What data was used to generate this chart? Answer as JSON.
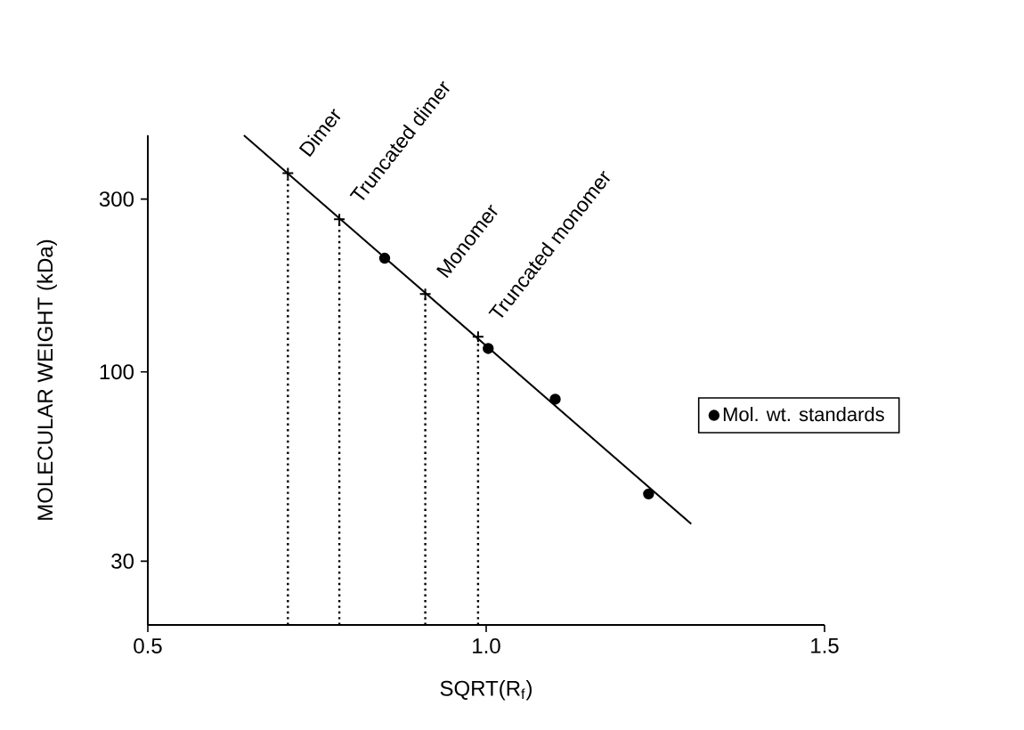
{
  "chart_data": {
    "type": "scatter",
    "xlabel": "SQRT(R$_{f}$)",
    "ylabel": "MOLECULAR WEIGHT (kDa)",
    "log": "y",
    "xlim": [
      0.5,
      1.5
    ],
    "ylim": [
      20,
      450
    ],
    "xticks": [
      0.5,
      {
        "value": 1.0,
        "label": "1.0"
      },
      1.5
    ],
    "yticks": [
      30,
      100,
      300
    ],
    "grid": false,
    "legend": "right",
    "series": [
      {
        "type": "scatter",
        "marker": "circle",
        "name": "Mol. wt. standards",
        "color": "#000000",
        "x": [
          0.85,
          1.003,
          1.102,
          1.24
        ],
        "values": [
          206,
          116,
          84,
          46
        ]
      },
      {
        "type": "scatter",
        "marker": "cross",
        "color": "#000000",
        "x": [
          0.707,
          0.783,
          0.91,
          0.988
        ],
        "values": [
          354,
          264,
          164,
          125
        ]
      },
      {
        "type": "line",
        "marker": "none",
        "color": "#000000",
        "x": [
          0.642,
          1.303
        ],
        "values": [
          450,
          38
        ]
      }
    ],
    "ref_lines": [
      {
        "axis": "x",
        "value": 0.707,
        "label": "Dimer",
        "line_style": "dotted"
      },
      {
        "axis": "x",
        "value": 0.783,
        "label": "Truncated dimer",
        "line_style": "dotted"
      },
      {
        "axis": "x",
        "value": 0.91,
        "label": "Monomer",
        "line_style": "dotted"
      },
      {
        "axis": "x",
        "value": 0.988,
        "label": "Truncated monomer",
        "line_style": "dotted"
      }
    ]
  }
}
